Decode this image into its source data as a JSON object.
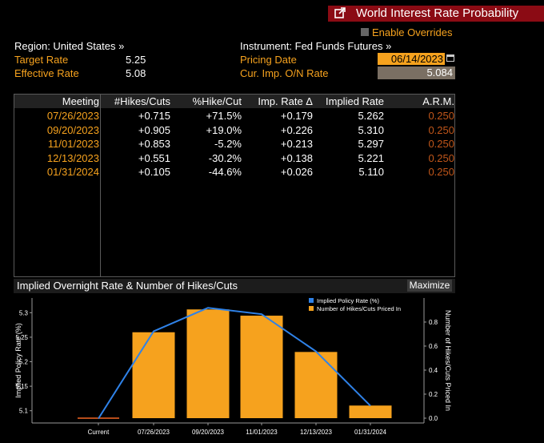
{
  "window": {
    "title": "World Interest Rate Probability"
  },
  "header": {
    "region": "Region: United States »",
    "instrument": "Instrument: Fed Funds Futures »",
    "enable_overrides": "Enable Overrides",
    "target_rate_label": "Target Rate",
    "target_rate_value": "5.25",
    "effective_rate_label": "Effective Rate",
    "effective_rate_value": "5.08",
    "pricing_date_label": "Pricing Date",
    "pricing_date_value": "06/14/2023",
    "cur_imp_label": "Cur. Imp. O/N Rate",
    "cur_imp_value": "5.084"
  },
  "table": {
    "headers": [
      "Meeting",
      "#Hikes/Cuts",
      "%Hike/Cut",
      "Imp. Rate Δ",
      "Implied Rate",
      "A.R.M."
    ],
    "rows": [
      [
        "07/26/2023",
        "+0.715",
        "+71.5%",
        "+0.179",
        "5.262",
        "0.250"
      ],
      [
        "09/20/2023",
        "+0.905",
        "+19.0%",
        "+0.226",
        "5.310",
        "0.250"
      ],
      [
        "11/01/2023",
        "+0.853",
        "-5.2%",
        "+0.213",
        "5.297",
        "0.250"
      ],
      [
        "12/13/2023",
        "+0.551",
        "-30.2%",
        "+0.138",
        "5.221",
        "0.250"
      ],
      [
        "01/31/2024",
        "+0.105",
        "-44.6%",
        "+0.026",
        "5.110",
        "0.250"
      ]
    ]
  },
  "chart_panel": {
    "title": "Implied Overnight Rate & Number of Hikes/Cuts",
    "maximize": "Maximize"
  },
  "chart_data": {
    "type": "bar",
    "categories": [
      "Current",
      "07/26/2023",
      "09/20/2023",
      "11/01/2023",
      "12/13/2023",
      "01/31/2024"
    ],
    "series": [
      {
        "name": "Implied Policy Rate (%)",
        "type": "line",
        "axis": "left",
        "values": [
          5.084,
          5.262,
          5.31,
          5.297,
          5.221,
          5.11
        ]
      },
      {
        "name": "Number of Hikes/Cuts Priced In",
        "type": "bar",
        "axis": "right",
        "values": [
          0,
          0.715,
          0.905,
          0.853,
          0.551,
          0.105
        ]
      }
    ],
    "ylabel": "Implied Policy Rate (%)",
    "y2label": "Number of Hikes/Cuts Priced In",
    "ylim": [
      5.075,
      5.33
    ],
    "yticks": [
      "5.1",
      "5.15",
      "5.2",
      "5.25",
      "5.3"
    ],
    "y2lim": [
      -0.04,
      1.0
    ],
    "y2ticks": [
      "0.0",
      "0.2",
      "0.4",
      "0.6",
      "0.8"
    ],
    "legend": "top-right",
    "colors": {
      "line": "#2f82e8",
      "bar": "#f6a21e"
    }
  }
}
